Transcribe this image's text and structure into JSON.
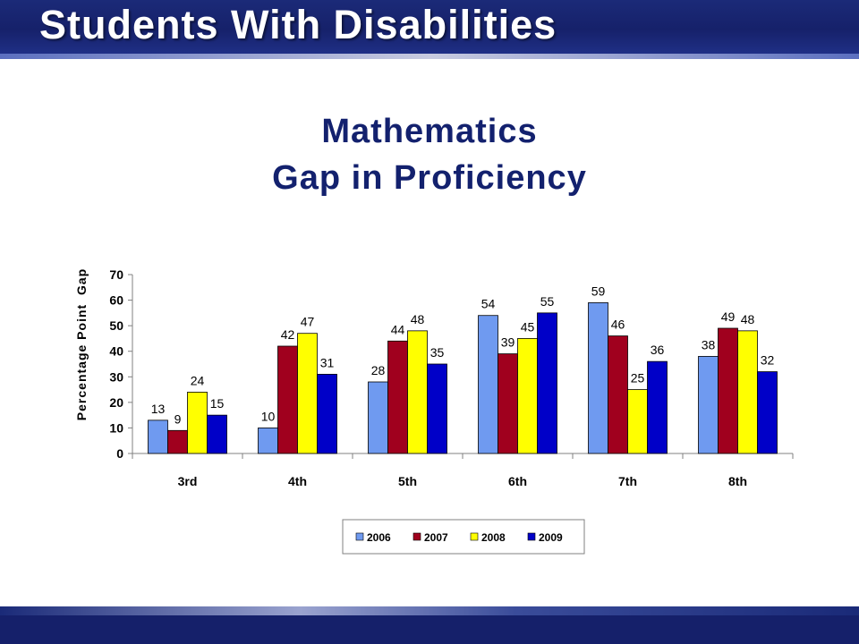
{
  "slide": {
    "title": "Students With Disabilities",
    "chart_title_line1": "Mathematics",
    "chart_title_line2": "Gap in Proficiency"
  },
  "colors": {
    "banner": "#1b2a78",
    "title_text": "#13216e",
    "series": [
      "#6f9af0",
      "#a0001e",
      "#ffff00",
      "#0000c8"
    ]
  },
  "chart_data": {
    "type": "bar",
    "title": "Mathematics Gap in Proficiency",
    "xlabel": "",
    "ylabel": "Percentage Point  Gap",
    "ylim": [
      0,
      70
    ],
    "yticks": [
      0,
      10,
      20,
      30,
      40,
      50,
      60,
      70
    ],
    "grid": false,
    "legend_position": "bottom",
    "categories": [
      "3rd",
      "4th",
      "5th",
      "6th",
      "7th",
      "8th"
    ],
    "series": [
      {
        "name": "2006",
        "values": [
          13,
          10,
          28,
          54,
          59,
          38
        ]
      },
      {
        "name": "2007",
        "values": [
          9,
          42,
          44,
          39,
          46,
          49
        ]
      },
      {
        "name": "2008",
        "values": [
          24,
          47,
          48,
          45,
          25,
          48
        ]
      },
      {
        "name": "2009",
        "values": [
          15,
          31,
          35,
          55,
          36,
          32
        ]
      }
    ]
  }
}
